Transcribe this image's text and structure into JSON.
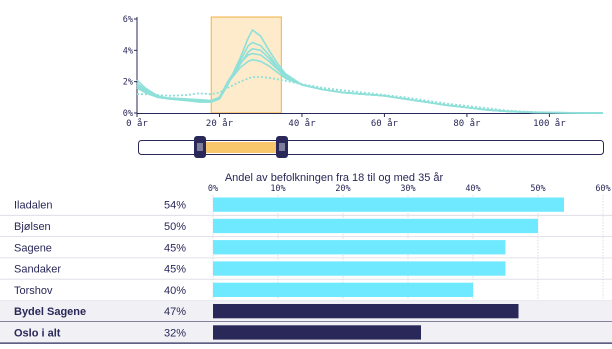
{
  "top_chart": {
    "y_ticks": [
      "6%",
      "4%",
      "2%",
      "0%"
    ],
    "x_ticks": [
      "0 år",
      "20 år",
      "40 år",
      "60 år",
      "80 år",
      "100 år"
    ]
  },
  "slider": {
    "range_label": "",
    "min_age": 18,
    "max_age": 35
  },
  "bar_chart": {
    "title": "Andel av befolkningen fra 18 til og med 35 år",
    "ticks": [
      "0%",
      "10%",
      "20%",
      "30%",
      "40%",
      "50%",
      "60%"
    ]
  },
  "colors": {
    "highlight": "#f8c66b",
    "bar_light": "#6ee9ff",
    "bar_dark": "#292858",
    "line": "#8ee0d9"
  },
  "chart_data": [
    {
      "type": "line",
      "title": "",
      "xlabel": "",
      "ylabel": "",
      "xlim": [
        0,
        113
      ],
      "ylim": [
        0,
        6
      ],
      "grid": false,
      "highlight_range": [
        18,
        35
      ],
      "x": [
        0,
        2,
        5,
        8,
        12,
        15,
        18,
        20,
        22,
        25,
        27,
        28,
        30,
        32,
        34,
        36,
        40,
        45,
        50,
        55,
        60,
        65,
        70,
        75,
        80,
        85,
        90,
        95,
        100,
        105,
        113
      ],
      "series": [
        {
          "name": "Iladalen",
          "style": "solid",
          "values": [
            2.1,
            1.6,
            1.1,
            0.9,
            0.8,
            0.7,
            0.7,
            0.9,
            1.8,
            3.5,
            4.8,
            5.3,
            4.9,
            4.0,
            3.2,
            2.5,
            1.8,
            1.5,
            1.3,
            1.2,
            1.1,
            0.9,
            0.7,
            0.5,
            0.35,
            0.2,
            0.1,
            0.05,
            0.02,
            0.01,
            0.0
          ]
        },
        {
          "name": "Bjølsen",
          "style": "solid",
          "values": [
            1.9,
            1.5,
            1.1,
            0.9,
            0.8,
            0.7,
            0.7,
            0.9,
            1.8,
            3.3,
            4.3,
            4.5,
            4.3,
            3.7,
            3.0,
            2.4,
            1.8,
            1.5,
            1.3,
            1.2,
            1.1,
            0.9,
            0.7,
            0.5,
            0.35,
            0.2,
            0.1,
            0.05,
            0.02,
            0.01,
            0.0
          ]
        },
        {
          "name": "Sagene",
          "style": "solid",
          "values": [
            1.8,
            1.4,
            1.0,
            0.9,
            0.8,
            0.75,
            0.7,
            1.0,
            1.9,
            3.1,
            3.9,
            4.1,
            4.0,
            3.5,
            2.9,
            2.3,
            1.8,
            1.5,
            1.3,
            1.2,
            1.1,
            0.9,
            0.7,
            0.5,
            0.35,
            0.2,
            0.1,
            0.05,
            0.02,
            0.01,
            0.0
          ]
        },
        {
          "name": "Sandaker",
          "style": "solid",
          "values": [
            1.7,
            1.3,
            1.0,
            0.9,
            0.85,
            0.8,
            0.75,
            1.0,
            2.0,
            3.2,
            3.7,
            3.8,
            3.7,
            3.3,
            2.8,
            2.3,
            1.8,
            1.5,
            1.3,
            1.2,
            1.1,
            0.9,
            0.7,
            0.5,
            0.35,
            0.2,
            0.1,
            0.05,
            0.02,
            0.01,
            0.0
          ]
        },
        {
          "name": "Torshov",
          "style": "solid",
          "values": [
            1.6,
            1.3,
            1.0,
            0.95,
            0.9,
            0.85,
            0.8,
            1.0,
            1.9,
            2.9,
            3.3,
            3.4,
            3.3,
            3.0,
            2.6,
            2.2,
            1.8,
            1.5,
            1.3,
            1.2,
            1.1,
            0.9,
            0.7,
            0.5,
            0.35,
            0.2,
            0.1,
            0.05,
            0.02,
            0.01,
            0.0
          ]
        },
        {
          "name": "Oslo i alt",
          "style": "dotted",
          "values": [
            1.2,
            1.2,
            1.15,
            1.1,
            1.15,
            1.25,
            1.2,
            1.3,
            1.6,
            2.0,
            2.2,
            2.3,
            2.3,
            2.25,
            2.15,
            2.05,
            1.85,
            1.6,
            1.45,
            1.3,
            1.15,
            1.0,
            0.8,
            0.6,
            0.45,
            0.3,
            0.15,
            0.07,
            0.03,
            0.01,
            0.0
          ]
        }
      ]
    },
    {
      "type": "bar",
      "orientation": "horizontal",
      "title": "Andel av befolkningen fra 18 til og med 35 år",
      "xlim": [
        0,
        60
      ],
      "grid": true,
      "categories": [
        "Iladalen",
        "Bjølsen",
        "Sagene",
        "Sandaker",
        "Torshov",
        "Bydel Sagene",
        "Oslo i alt"
      ],
      "value_labels": [
        "54%",
        "50%",
        "45%",
        "45%",
        "40%",
        "47%",
        "32%"
      ],
      "values": [
        54,
        50,
        45,
        45,
        40,
        47,
        32
      ],
      "emphasis": [
        false,
        false,
        false,
        false,
        false,
        true,
        true
      ]
    }
  ]
}
